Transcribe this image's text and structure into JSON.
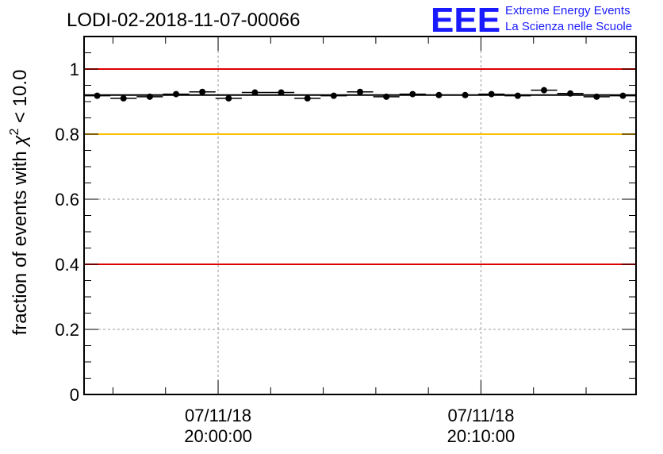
{
  "logo": {
    "mark": "EEE",
    "line1": "Extreme Energy Events",
    "line2": "La Scienza nelle Scuole",
    "color": "#1a1aff"
  },
  "chart_data": {
    "type": "scatter",
    "title": "LODI-02-2018-11-07-00066",
    "ylabel_main": "fraction of events with ",
    "ylabel_chi": "χ",
    "ylabel_exp": "2",
    "ylabel_tail": " < 10.0",
    "xlabel": "",
    "ylim": [
      0,
      1.1
    ],
    "yticks": [
      0,
      0.2,
      0.4,
      0.6,
      0.8,
      1
    ],
    "ytick_labels": [
      "0",
      "0.2",
      "0.4",
      "0.6",
      "0.8",
      "1"
    ],
    "x_unit": "minutes after 07/11/18 19:55:00",
    "xlim": [
      0,
      21
    ],
    "xticks": [
      {
        "x": 5.1,
        "date": "07/11/18",
        "time": "20:00:00"
      },
      {
        "x": 15.1,
        "date": "07/11/18",
        "time": "20:10:00"
      }
    ],
    "grid": true,
    "bin_width": 1.0,
    "x": [
      0.5,
      1.5,
      2.5,
      3.5,
      4.5,
      5.5,
      6.5,
      7.5,
      8.5,
      9.5,
      10.5,
      11.5,
      12.5,
      13.5,
      14.5,
      15.5,
      16.5,
      17.5,
      18.5,
      19.5,
      20.5
    ],
    "values": [
      0.918,
      0.91,
      0.915,
      0.923,
      0.93,
      0.91,
      0.928,
      0.928,
      0.91,
      0.918,
      0.93,
      0.915,
      0.923,
      0.92,
      0.92,
      0.923,
      0.918,
      0.935,
      0.925,
      0.915,
      0.918
    ],
    "reference_lines": [
      {
        "y": 1.0,
        "color": "#e00000"
      },
      {
        "y": 0.8,
        "color": "#ffc000"
      },
      {
        "y": 0.4,
        "color": "#e00000"
      },
      {
        "y": 0.92,
        "color": "#000000"
      }
    ]
  }
}
